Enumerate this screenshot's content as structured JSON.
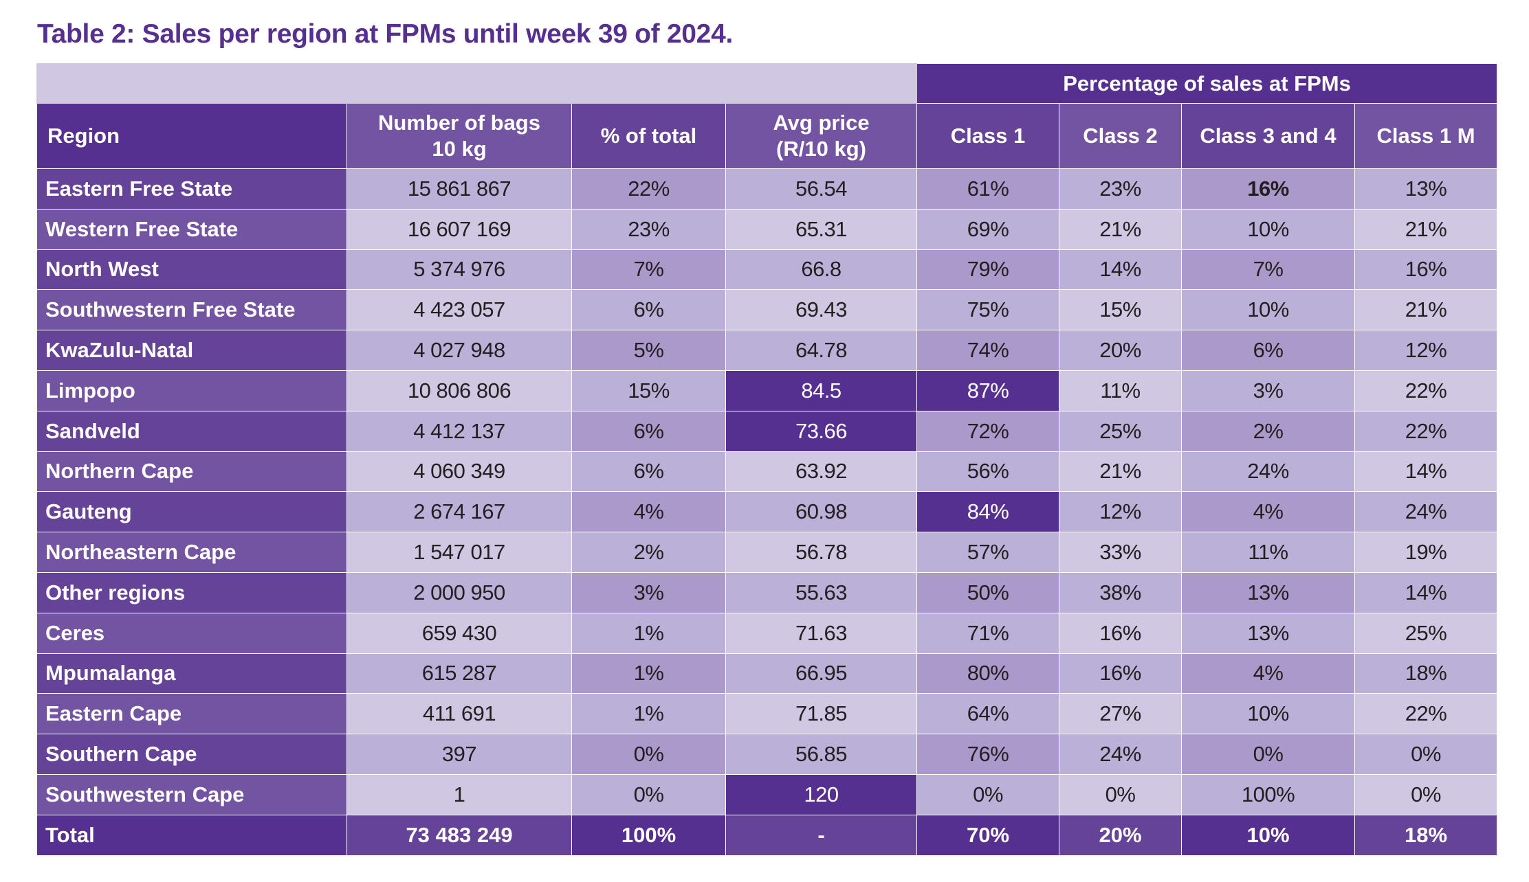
{
  "title": "Table 2: Sales per region at FPMs until week 39 of 2024.",
  "colors": {
    "header_dark": "#553090",
    "header_mid": "#644399",
    "header_light": "#7254a3",
    "cell_light": "#d0c8e3",
    "cell_mid": "#bbb0d7",
    "cell_dark": "#aa99ca",
    "highlight": "#553090",
    "text_dark": "#231f20",
    "title": "#553090"
  },
  "table": {
    "group_header": "Percentage of sales at FPMs",
    "columns": [
      {
        "key": "region",
        "label": "Region"
      },
      {
        "key": "bags",
        "label": "Number of bags\n10 kg"
      },
      {
        "key": "pct_total",
        "label": "% of total"
      },
      {
        "key": "avg_price",
        "label": "Avg price\n(R/10 kg)"
      },
      {
        "key": "class1",
        "label": "Class 1"
      },
      {
        "key": "class2",
        "label": "Class 2"
      },
      {
        "key": "class34",
        "label": "Class 3 and 4"
      },
      {
        "key": "class1m",
        "label": "Class 1 M"
      }
    ],
    "rows": [
      {
        "region": "Eastern Free State",
        "bags": "15 861 867",
        "pct_total": "22%",
        "avg_price": "56.54",
        "class1": "61%",
        "class2": "23%",
        "class34": "16%",
        "class1m": "13%",
        "bold": [
          "class34"
        ]
      },
      {
        "region": "Western Free State",
        "bags": "16 607 169",
        "pct_total": "23%",
        "avg_price": "65.31",
        "class1": "69%",
        "class2": "21%",
        "class34": "10%",
        "class1m": "21%"
      },
      {
        "region": "North West",
        "bags": "5 374 976",
        "pct_total": "7%",
        "avg_price": "66.8",
        "class1": "79%",
        "class2": "14%",
        "class34": "7%",
        "class1m": "16%"
      },
      {
        "region": "Southwestern Free State",
        "bags": "4 423 057",
        "pct_total": "6%",
        "avg_price": "69.43",
        "class1": "75%",
        "class2": "15%",
        "class34": "10%",
        "class1m": "21%"
      },
      {
        "region": "KwaZulu-Natal",
        "bags": "4 027 948",
        "pct_total": "5%",
        "avg_price": "64.78",
        "class1": "74%",
        "class2": "20%",
        "class34": "6%",
        "class1m": "12%"
      },
      {
        "region": "Limpopo",
        "bags": "10 806 806",
        "pct_total": "15%",
        "avg_price": "84.5",
        "class1": "87%",
        "class2": "11%",
        "class34": "3%",
        "class1m": "22%",
        "highlight": [
          "avg_price",
          "class1"
        ]
      },
      {
        "region": "Sandveld",
        "bags": "4 412 137",
        "pct_total": "6%",
        "avg_price": "73.66",
        "class1": "72%",
        "class2": "25%",
        "class34": "2%",
        "class1m": "22%",
        "highlight": [
          "avg_price"
        ]
      },
      {
        "region": "Northern Cape",
        "bags": "4 060 349",
        "pct_total": "6%",
        "avg_price": "63.92",
        "class1": "56%",
        "class2": "21%",
        "class34": "24%",
        "class1m": "14%"
      },
      {
        "region": "Gauteng",
        "bags": "2 674 167",
        "pct_total": "4%",
        "avg_price": "60.98",
        "class1": "84%",
        "class2": "12%",
        "class34": "4%",
        "class1m": "24%",
        "highlight": [
          "class1"
        ]
      },
      {
        "region": "Northeastern Cape",
        "bags": "1 547 017",
        "pct_total": "2%",
        "avg_price": "56.78",
        "class1": "57%",
        "class2": "33%",
        "class34": "11%",
        "class1m": "19%"
      },
      {
        "region": "Other regions",
        "bags": "2 000 950",
        "pct_total": "3%",
        "avg_price": "55.63",
        "class1": "50%",
        "class2": "38%",
        "class34": "13%",
        "class1m": "14%"
      },
      {
        "region": "Ceres",
        "bags": "659 430",
        "pct_total": "1%",
        "avg_price": "71.63",
        "class1": "71%",
        "class2": "16%",
        "class34": "13%",
        "class1m": "25%"
      },
      {
        "region": "Mpumalanga",
        "bags": "615 287",
        "pct_total": "1%",
        "avg_price": "66.95",
        "class1": "80%",
        "class2": "16%",
        "class34": "4%",
        "class1m": "18%"
      },
      {
        "region": "Eastern Cape",
        "bags": "411 691",
        "pct_total": "1%",
        "avg_price": "71.85",
        "class1": "64%",
        "class2": "27%",
        "class34": "10%",
        "class1m": "22%"
      },
      {
        "region": "Southern Cape",
        "bags": "397",
        "pct_total": "0%",
        "avg_price": "56.85",
        "class1": "76%",
        "class2": "24%",
        "class34": "0%",
        "class1m": "0%"
      },
      {
        "region": "Southwestern Cape",
        "bags": "1",
        "pct_total": "0%",
        "avg_price": "120",
        "class1": "0%",
        "class2": "0%",
        "class34": "100%",
        "class1m": "0%",
        "highlight": [
          "avg_price"
        ]
      }
    ],
    "total": {
      "region": "Total",
      "bags": "73 483 249",
      "pct_total": "100%",
      "avg_price": "-",
      "class1": "70%",
      "class2": "20%",
      "class34": "10%",
      "class1m": "18%"
    }
  }
}
